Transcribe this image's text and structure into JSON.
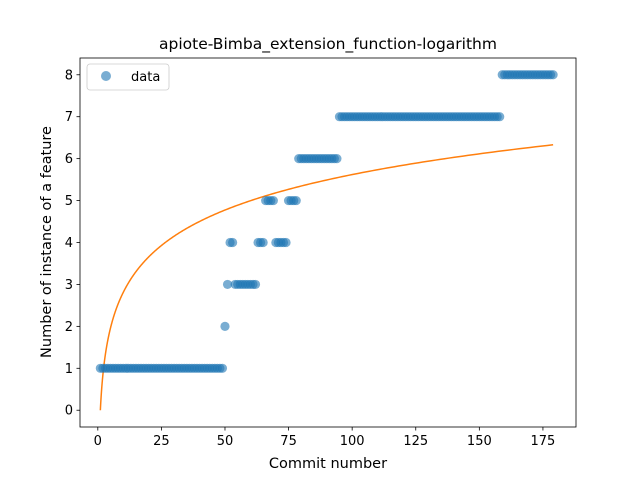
{
  "chart_data": {
    "type": "scatter",
    "title": "apiote-Bimba_extension_function-logarithm",
    "xlabel": "Commit number",
    "ylabel": "Number of instance of a feature",
    "xlim": [
      -7,
      188
    ],
    "ylim": [
      -0.4,
      8.4
    ],
    "xticks": [
      0,
      25,
      50,
      75,
      100,
      125,
      150,
      175
    ],
    "yticks": [
      0,
      1,
      2,
      3,
      4,
      5,
      6,
      7,
      8
    ],
    "grid": false,
    "legend_position": "top-left",
    "colors": {
      "data": "#1f77b4",
      "fit": "#ff7f0e"
    },
    "series": [
      {
        "name": "data",
        "kind": "scatter",
        "segments": [
          {
            "x_start": 1,
            "x_end": 49,
            "y": 1
          },
          {
            "x_start": 50,
            "x_end": 50,
            "y": 2
          },
          {
            "x_start": 51,
            "x_end": 51,
            "y": 3
          },
          {
            "x_start": 52,
            "x_end": 53,
            "y": 4
          },
          {
            "x_start": 54,
            "x_end": 62,
            "y": 3
          },
          {
            "x_start": 63,
            "x_end": 65,
            "y": 4
          },
          {
            "x_start": 66,
            "x_end": 69,
            "y": 5
          },
          {
            "x_start": 70,
            "x_end": 74,
            "y": 4
          },
          {
            "x_start": 75,
            "x_end": 78,
            "y": 5
          },
          {
            "x_start": 79,
            "x_end": 94,
            "y": 6
          },
          {
            "x_start": 95,
            "x_end": 158,
            "y": 7
          },
          {
            "x_start": 159,
            "x_end": 179,
            "y": 8
          }
        ]
      },
      {
        "kind": "line",
        "function": "logarithmic",
        "x_start": 1,
        "x_end": 179,
        "y_start": 0,
        "y_end": 6.33
      }
    ]
  }
}
